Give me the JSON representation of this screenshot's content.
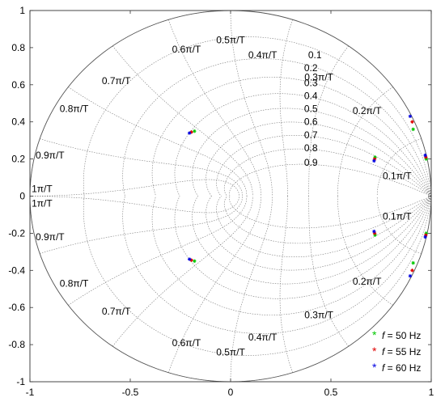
{
  "chart_data": {
    "type": "scatter",
    "title": "",
    "xlabel": "",
    "ylabel": "",
    "xlim": [
      -1,
      1
    ],
    "ylim": [
      -1,
      1
    ],
    "xticks": [
      "-1",
      "-0.5",
      "0",
      "0.5",
      "1"
    ],
    "yticks": [
      "1",
      "0.8",
      "0.6",
      "0.4",
      "0.2",
      "0",
      "-0.2",
      "-0.4",
      "-0.6",
      "-0.8",
      "-1"
    ],
    "grid": "zplane-damping-frequency",
    "frequency_labels": {
      "upper": [
        "0.1π/T",
        "0.2π/T",
        "0.3π/T",
        "0.4π/T",
        "0.5π/T",
        "0.6π/T",
        "0.7π/T",
        "0.8π/T",
        "0.9π/T",
        "1π/T"
      ],
      "lower": [
        "0.1π/T",
        "0.2π/T",
        "0.3π/T",
        "0.4π/T",
        "0.5π/T",
        "0.6π/T",
        "0.7π/T",
        "0.8π/T",
        "0.9π/T",
        "1π/T"
      ]
    },
    "damping_labels": [
      "0.1",
      "0.2",
      "0.3",
      "0.4",
      "0.5",
      "0.6",
      "0.7",
      "0.8",
      "0.9"
    ],
    "legend_position": "bottom-right",
    "series": [
      {
        "name": "f = 50 Hz",
        "color": "#00c800",
        "points": [
          [
            -0.18,
            0.35
          ],
          [
            -0.18,
            -0.35
          ],
          [
            0.72,
            0.21
          ],
          [
            0.72,
            -0.21
          ],
          [
            0.91,
            0.36
          ],
          [
            0.91,
            -0.36
          ],
          [
            0.975,
            0.2
          ],
          [
            0.975,
            -0.2
          ]
        ]
      },
      {
        "name": "f = 55 Hz",
        "color": "#e00000",
        "points": [
          [
            -0.195,
            0.345
          ],
          [
            -0.195,
            -0.345
          ],
          [
            0.718,
            0.2
          ],
          [
            0.718,
            -0.2
          ],
          [
            0.905,
            0.4
          ],
          [
            0.905,
            -0.4
          ],
          [
            0.973,
            0.21
          ],
          [
            0.973,
            -0.21
          ]
        ]
      },
      {
        "name": "f = 60 Hz",
        "color": "#0000e0",
        "points": [
          [
            -0.205,
            0.34
          ],
          [
            -0.205,
            -0.34
          ],
          [
            0.715,
            0.19
          ],
          [
            0.715,
            -0.19
          ],
          [
            0.895,
            0.43
          ],
          [
            0.895,
            -0.43
          ],
          [
            0.97,
            0.22
          ],
          [
            0.97,
            -0.22
          ]
        ]
      }
    ]
  },
  "legend": {
    "symbol": "f",
    "items": [
      {
        "text": " = 50 Hz",
        "color": "#00c800"
      },
      {
        "text": " = 55 Hz",
        "color": "#e00000"
      },
      {
        "text": " = 60 Hz",
        "color": "#0000e0"
      }
    ]
  }
}
